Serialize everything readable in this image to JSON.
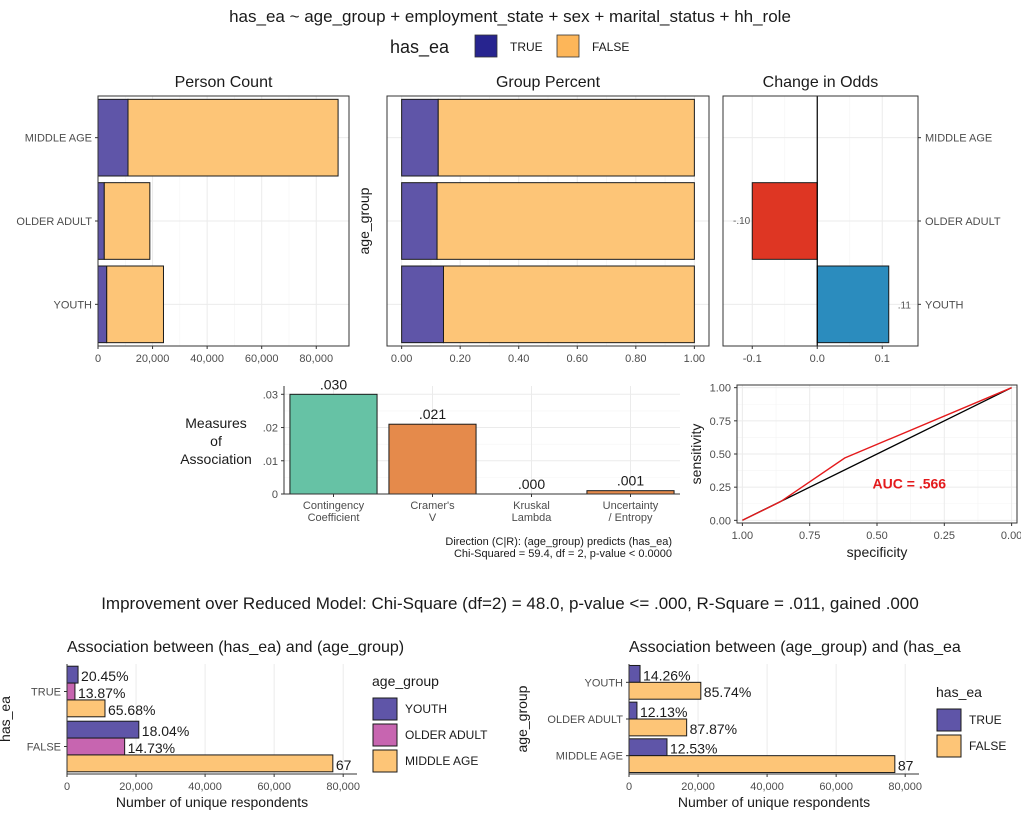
{
  "title": "has_ea ~ age_group + employment_state + sex + marital_status + hh_role",
  "top_legend": {
    "title": "has_ea",
    "items": [
      {
        "label": "TRUE",
        "color": "#27248f"
      },
      {
        "label": "FALSE",
        "color": "#fdb659"
      }
    ]
  },
  "improvement_text": "Improvement over Reduced Model: Chi-Square (df=2) = 48.0, p-value <= .000, R-Square  = .011, gained .000",
  "colors": {
    "true_bar": "#5f55a8",
    "false_bar": "#fdc577",
    "older_adult": "#c765b0",
    "odds_neg": "#de3623",
    "odds_pos": "#2b8cbe",
    "contingency": "#66c2a5",
    "cramers": "#e58a4b",
    "roc_line": "#e41a1c"
  },
  "chart_data": [
    {
      "id": "person-count",
      "type": "bar",
      "orientation": "horizontal",
      "stacked": true,
      "title": "Person Count",
      "categories": [
        "MIDDLE AGE",
        "OLDER ADULT",
        "YOUTH"
      ],
      "series": [
        {
          "name": "TRUE",
          "values": [
            11000,
            2300,
            3200
          ]
        },
        {
          "name": "FALSE",
          "values": [
            77000,
            16700,
            20800
          ]
        }
      ],
      "xlim": [
        0,
        92000
      ],
      "xticks": [
        0,
        20000,
        40000,
        60000,
        80000
      ],
      "xtick_labels": [
        "0",
        "20,000",
        "40,000",
        "60,000",
        "80,000"
      ]
    },
    {
      "id": "group-percent",
      "type": "bar",
      "orientation": "horizontal",
      "stacked": true,
      "title": "Group Percent",
      "ylabel": "age_group",
      "categories": [
        "MIDDLE AGE",
        "OLDER ADULT",
        "YOUTH"
      ],
      "series": [
        {
          "name": "TRUE",
          "values": [
            0.125,
            0.121,
            0.143
          ]
        },
        {
          "name": "FALSE",
          "values": [
            0.875,
            0.879,
            0.857
          ]
        }
      ],
      "xlim": [
        -0.05,
        1.05
      ],
      "xticks": [
        0,
        0.2,
        0.4,
        0.6,
        0.8,
        1.0
      ],
      "xtick_labels": [
        "0.00",
        "0.20",
        "0.40",
        "0.60",
        "0.80",
        "1.00"
      ]
    },
    {
      "id": "change-in-odds",
      "type": "bar",
      "orientation": "horizontal",
      "title": "Change in Odds",
      "categories": [
        "MIDDLE AGE",
        "OLDER ADULT",
        "YOUTH"
      ],
      "values": [
        0,
        -0.1,
        0.11
      ],
      "value_labels": [
        "",
        "-.10",
        ".11"
      ],
      "xlim": [
        -0.145,
        0.155
      ],
      "xticks": [
        -0.1,
        0.0,
        0.1
      ],
      "xtick_labels": [
        "-0.1",
        "0.0",
        "0.1"
      ],
      "reference_line": 0
    },
    {
      "id": "measures-of-association",
      "type": "bar",
      "title": "Measures of Association",
      "title_lines": [
        "Measures",
        "of",
        "Association"
      ],
      "categories": [
        "Contingency Coefficient",
        "Cramer's V",
        "Kruskal Lambda",
        "Uncertainty / Entropy"
      ],
      "category_lines": [
        [
          "Contingency",
          "Coefficient"
        ],
        [
          "Cramer's",
          "V"
        ],
        [
          "Kruskal",
          "Lambda"
        ],
        [
          "Uncertainty",
          "/ Entropy"
        ]
      ],
      "values": [
        0.03,
        0.021,
        0.0,
        0.001
      ],
      "value_labels": [
        ".030",
        ".021",
        ".000",
        ".001"
      ],
      "ylim": [
        0,
        0.0325
      ],
      "yticks": [
        0,
        0.01,
        0.02,
        0.03
      ],
      "ytick_labels": [
        "0",
        ".01",
        ".02",
        ".03"
      ],
      "notes": [
        "Direction (C|R): (age_group) predicts (has_ea)",
        "Chi-Squared = 59.4, df = 2, p-value < 0.0000"
      ]
    },
    {
      "id": "roc",
      "type": "line",
      "xlabel": "specificity",
      "ylabel": "sensitivity",
      "x_reversed": true,
      "xlim": [
        1.02,
        -0.02
      ],
      "ylim": [
        -0.02,
        1.02
      ],
      "xticks": [
        1.0,
        0.75,
        0.5,
        0.25,
        0.0
      ],
      "xtick_labels": [
        "1.00",
        "0.75",
        "0.50",
        "0.25",
        "0.00"
      ],
      "yticks": [
        0.0,
        0.25,
        0.5,
        0.75,
        1.0
      ],
      "ytick_labels": [
        "0.00",
        "0.25",
        "0.50",
        "0.75",
        "1.00"
      ],
      "series": [
        {
          "x": [
            1.0,
            0.878,
            0.857,
            0.62,
            0.0
          ],
          "y": [
            0.0,
            0.121,
            0.143,
            0.47,
            1.0
          ]
        },
        {
          "x": [
            1.0,
            0.0
          ],
          "y": [
            0.0,
            1.0
          ]
        }
      ],
      "annotation": "AUC = .566"
    },
    {
      "id": "assoc-has-ea-age-group",
      "type": "bar",
      "orientation": "horizontal",
      "title": "Association between (has_ea) and (age_group)",
      "ylabel": "has_ea",
      "xlabel": "Number of unique respondents",
      "legend_title": "age_group",
      "legend": [
        "YOUTH",
        "OLDER ADULT",
        "MIDDLE AGE"
      ],
      "categories": [
        "TRUE",
        "FALSE"
      ],
      "series": [
        {
          "name": "YOUTH",
          "values": [
            3200,
            20800
          ],
          "labels": [
            "20.45%",
            "18.04%"
          ]
        },
        {
          "name": "OLDER ADULT",
          "values": [
            2300,
            16700
          ],
          "labels": [
            "13.87%",
            "14.73%"
          ]
        },
        {
          "name": "MIDDLE AGE",
          "values": [
            11000,
            77000
          ],
          "labels": [
            "65.68%",
            "67"
          ]
        }
      ],
      "xlim": [
        0,
        84000
      ],
      "xticks": [
        0,
        20000,
        40000,
        60000,
        80000
      ],
      "xtick_labels": [
        "0",
        "20,000",
        "40,000",
        "60,000",
        "80,000"
      ]
    },
    {
      "id": "assoc-age-group-has-ea",
      "type": "bar",
      "orientation": "horizontal",
      "title": "Association between (age_group) and (has_ea",
      "ylabel": "age_group",
      "xlabel": "Number of unique respondents",
      "legend_title": "has_ea",
      "legend": [
        "TRUE",
        "FALSE"
      ],
      "categories": [
        "YOUTH",
        "OLDER ADULT",
        "MIDDLE AGE"
      ],
      "series": [
        {
          "name": "TRUE",
          "values": [
            3200,
            2300,
            11000
          ],
          "labels": [
            "14.26%",
            "12.13%",
            "12.53%"
          ]
        },
        {
          "name": "FALSE",
          "values": [
            20800,
            16700,
            77000
          ],
          "labels": [
            "85.74%",
            "87.87%",
            "87"
          ]
        }
      ],
      "xlim": [
        0,
        84000
      ],
      "xticks": [
        0,
        20000,
        40000,
        60000,
        80000
      ],
      "xtick_labels": [
        "0",
        "20,000",
        "40,000",
        "60,000",
        "80,000"
      ]
    }
  ]
}
